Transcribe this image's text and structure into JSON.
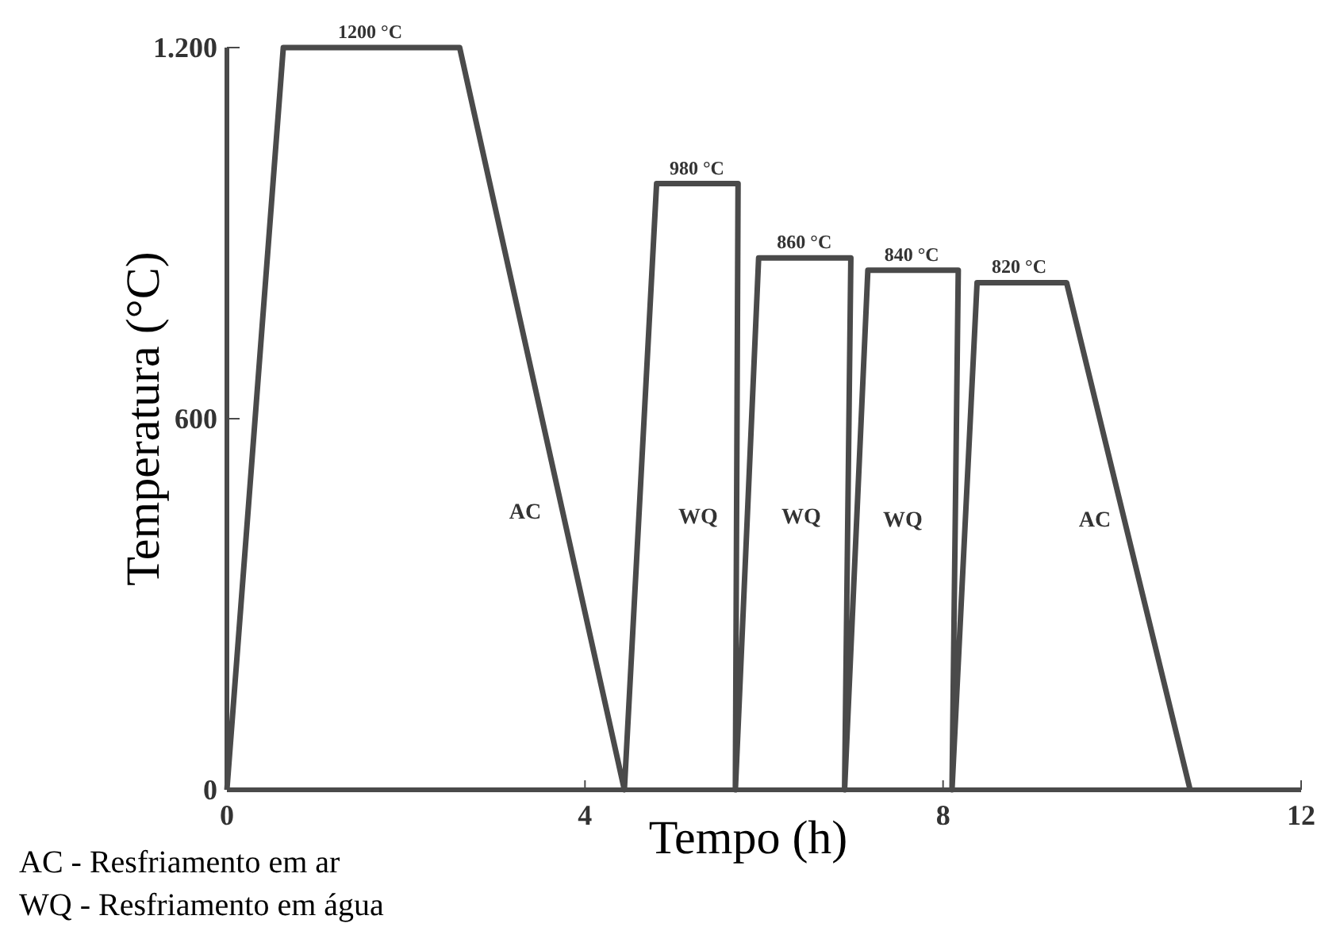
{
  "chart_data": {
    "type": "line",
    "xlabel": "Tempo (h)",
    "ylabel": "Temperatura (°C)",
    "xlim": [
      0,
      12
    ],
    "ylim": [
      0,
      1200
    ],
    "xticks": [
      0,
      4,
      8,
      12
    ],
    "yticks": [
      0,
      600,
      {
        "value": 1200,
        "label": "1.200"
      }
    ],
    "series": [
      {
        "color": "#4a4a4a",
        "x": [
          0,
          0.63,
          2.6,
          4.44,
          4.8,
          5.71,
          5.68,
          5.94,
          6.97,
          6.9,
          7.16,
          8.17,
          8.1,
          8.38,
          9.38,
          10.76
        ],
        "values": [
          0,
          1200,
          1200,
          0,
          980,
          980,
          0,
          860,
          860,
          0,
          840,
          840,
          0,
          820,
          820,
          0
        ]
      }
    ],
    "annotations": [
      {
        "text": "1200 °C",
        "x": 1.6,
        "y": 1200
      },
      {
        "text": "980 °C",
        "x": 5.25,
        "y": 980
      },
      {
        "text": "860 °C",
        "x": 6.45,
        "y": 860
      },
      {
        "text": "840 °C",
        "x": 7.65,
        "y": 840
      },
      {
        "text": "820 °C",
        "x": 8.85,
        "y": 820
      },
      "AC",
      "WQ",
      "WQ",
      "WQ",
      "AC",
      "AC - Resfriamento em ar",
      "WQ - Resfriamento em água"
    ]
  }
}
